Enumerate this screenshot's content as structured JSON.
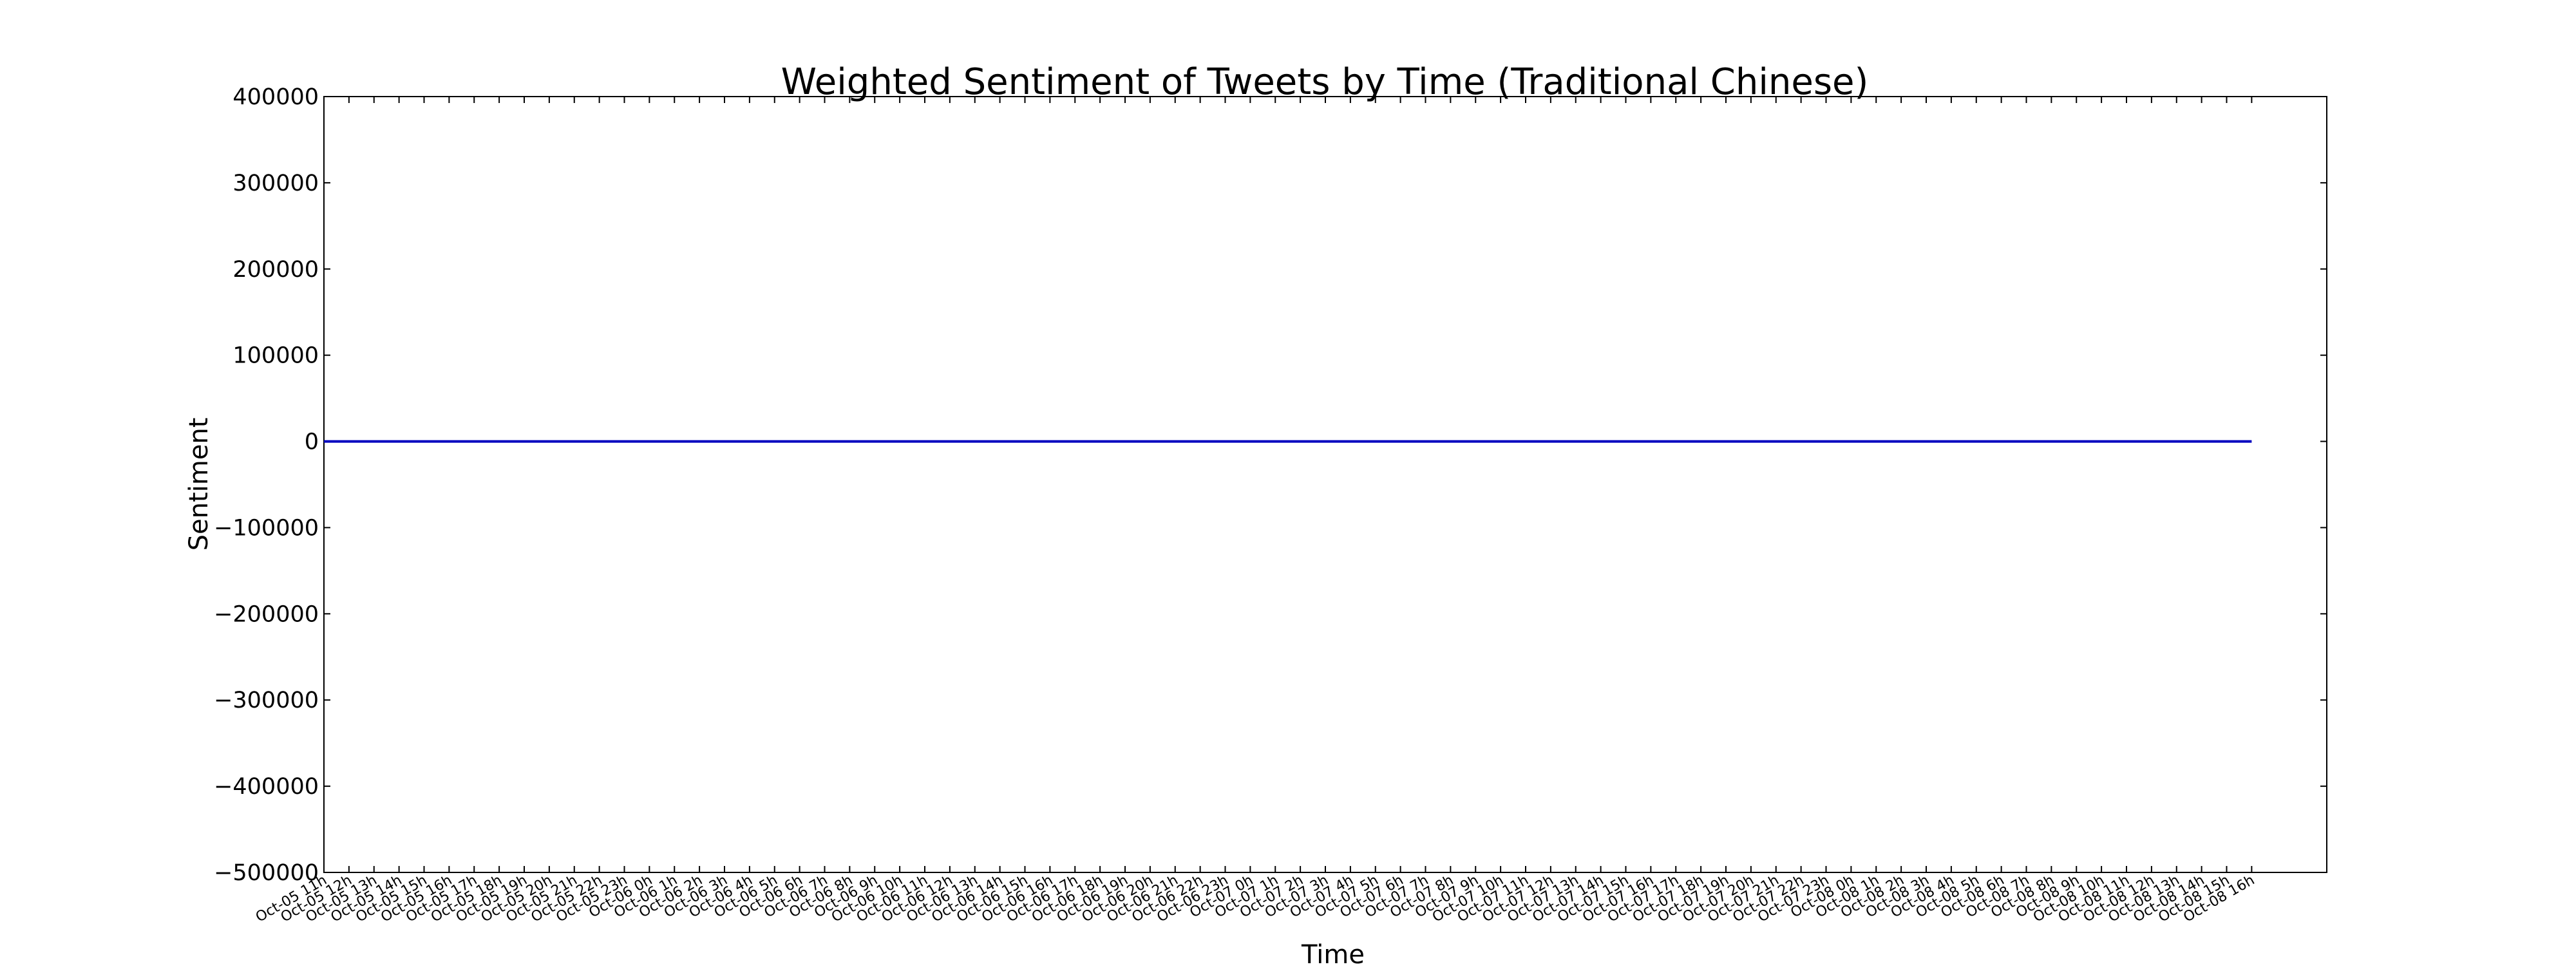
{
  "chart_data": {
    "type": "line",
    "title": "Weighted Sentiment of Tweets by Time (Traditional Chinese)",
    "xlabel": "Time",
    "ylabel": "Sentiment",
    "ylim": [
      -500000,
      400000
    ],
    "yticks": [
      "400000",
      "300000",
      "200000",
      "100000",
      "0",
      "−100000",
      "−200000",
      "−300000",
      "−400000",
      "−500000"
    ],
    "grid": false,
    "legend": "none",
    "colors": {
      "line": "#0000bf",
      "axes": "#000000",
      "background": "#ffffff"
    },
    "categories": [
      "Oct-05 11h",
      "Oct-05 12h",
      "Oct-05 13h",
      "Oct-05 14h",
      "Oct-05 15h",
      "Oct-05 16h",
      "Oct-05 17h",
      "Oct-05 18h",
      "Oct-05 19h",
      "Oct-05 20h",
      "Oct-05 21h",
      "Oct-05 22h",
      "Oct-05 23h",
      "Oct-06 0h",
      "Oct-06 1h",
      "Oct-06 2h",
      "Oct-06 3h",
      "Oct-06 4h",
      "Oct-06 5h",
      "Oct-06 6h",
      "Oct-06 7h",
      "Oct-06 8h",
      "Oct-06 9h",
      "Oct-06 10h",
      "Oct-06 11h",
      "Oct-06 12h",
      "Oct-06 13h",
      "Oct-06 14h",
      "Oct-06 15h",
      "Oct-06 16h",
      "Oct-06 17h",
      "Oct-06 18h",
      "Oct-06 19h",
      "Oct-06 20h",
      "Oct-06 21h",
      "Oct-06 22h",
      "Oct-06 23h",
      "Oct-07 0h",
      "Oct-07 1h",
      "Oct-07 2h",
      "Oct-07 3h",
      "Oct-07 4h",
      "Oct-07 5h",
      "Oct-07 6h",
      "Oct-07 7h",
      "Oct-07 8h",
      "Oct-07 9h",
      "Oct-07 10h",
      "Oct-07 11h",
      "Oct-07 12h",
      "Oct-07 13h",
      "Oct-07 14h",
      "Oct-07 15h",
      "Oct-07 16h",
      "Oct-07 17h",
      "Oct-07 18h",
      "Oct-07 19h",
      "Oct-07 20h",
      "Oct-07 21h",
      "Oct-07 22h",
      "Oct-07 23h",
      "Oct-08 0h",
      "Oct-08 1h",
      "Oct-08 2h",
      "Oct-08 3h",
      "Oct-08 4h",
      "Oct-08 5h",
      "Oct-08 6h",
      "Oct-08 7h",
      "Oct-08 8h",
      "Oct-08 9h",
      "Oct-08 10h",
      "Oct-08 11h",
      "Oct-08 12h",
      "Oct-08 13h",
      "Oct-08 14h",
      "Oct-08 15h",
      "Oct-08 16h"
    ],
    "series": [
      {
        "values": [
          0,
          0,
          0,
          0,
          0,
          0,
          0,
          0,
          0,
          0,
          0,
          0,
          0,
          0,
          0,
          0,
          0,
          0,
          0,
          0,
          0,
          0,
          0,
          0,
          0,
          0,
          0,
          0,
          0,
          0,
          0,
          0,
          0,
          0,
          0,
          0,
          0,
          0,
          0,
          0,
          0,
          0,
          0,
          0,
          0,
          0,
          0,
          0,
          0,
          0,
          0,
          0,
          0,
          0,
          0,
          0,
          0,
          0,
          0,
          0,
          0,
          0,
          0,
          0,
          0,
          0,
          0,
          0,
          0,
          0,
          0,
          0,
          0,
          0,
          0,
          0,
          0,
          0
        ]
      }
    ]
  }
}
